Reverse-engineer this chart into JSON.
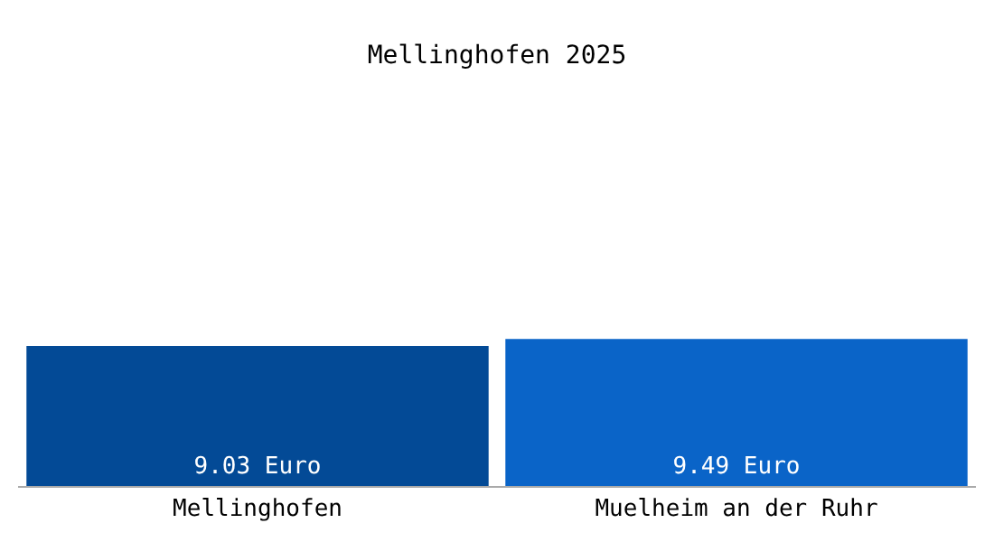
{
  "chart_data": {
    "type": "bar",
    "title": "Mellinghofen 2025",
    "categories": [
      "Mellinghofen",
      "Muelheim an der Ruhr"
    ],
    "values": [
      9.03,
      9.49
    ],
    "colors": [
      "#034a96",
      "#0a64c8"
    ],
    "value_labels": [
      "9.03 Euro",
      "9.49 Euro"
    ]
  }
}
